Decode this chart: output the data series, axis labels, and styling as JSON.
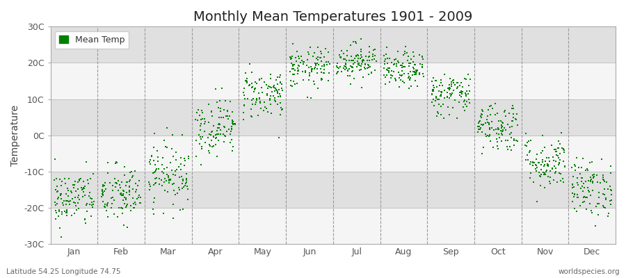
{
  "title": "Monthly Mean Temperatures 1901 - 2009",
  "ylabel": "Temperature",
  "bottom_left": "Latitude 54.25 Longitude 74.75",
  "bottom_right": "worldspecies.org",
  "legend_label": "Mean Temp",
  "months": [
    "Jan",
    "Feb",
    "Mar",
    "Apr",
    "May",
    "Jun",
    "Jul",
    "Aug",
    "Sep",
    "Oct",
    "Nov",
    "Dec"
  ],
  "month_means": [
    -17.5,
    -16.5,
    -10.5,
    2.5,
    11.5,
    18.5,
    20.5,
    18.0,
    11.5,
    2.5,
    -7.5,
    -14.5
  ],
  "month_stds": [
    4.0,
    4.2,
    4.5,
    4.0,
    3.5,
    2.8,
    2.5,
    2.5,
    3.0,
    3.5,
    3.8,
    4.0
  ],
  "n_years": 109,
  "ylim": [
    -30,
    30
  ],
  "yticks": [
    -30,
    -20,
    -10,
    0,
    10,
    20,
    30
  ],
  "ytick_labels": [
    "-30C",
    "-20C",
    "-10C",
    "0C",
    "10C",
    "20C",
    "30C"
  ],
  "dot_color": "#008000",
  "dot_size": 3,
  "plot_bg_color": "#e8e8e8",
  "band_light": "#f5f5f5",
  "band_dark": "#e0e0e0",
  "title_fontsize": 14,
  "axis_fontsize": 10,
  "tick_fontsize": 9,
  "legend_fontsize": 9,
  "seed": 42
}
